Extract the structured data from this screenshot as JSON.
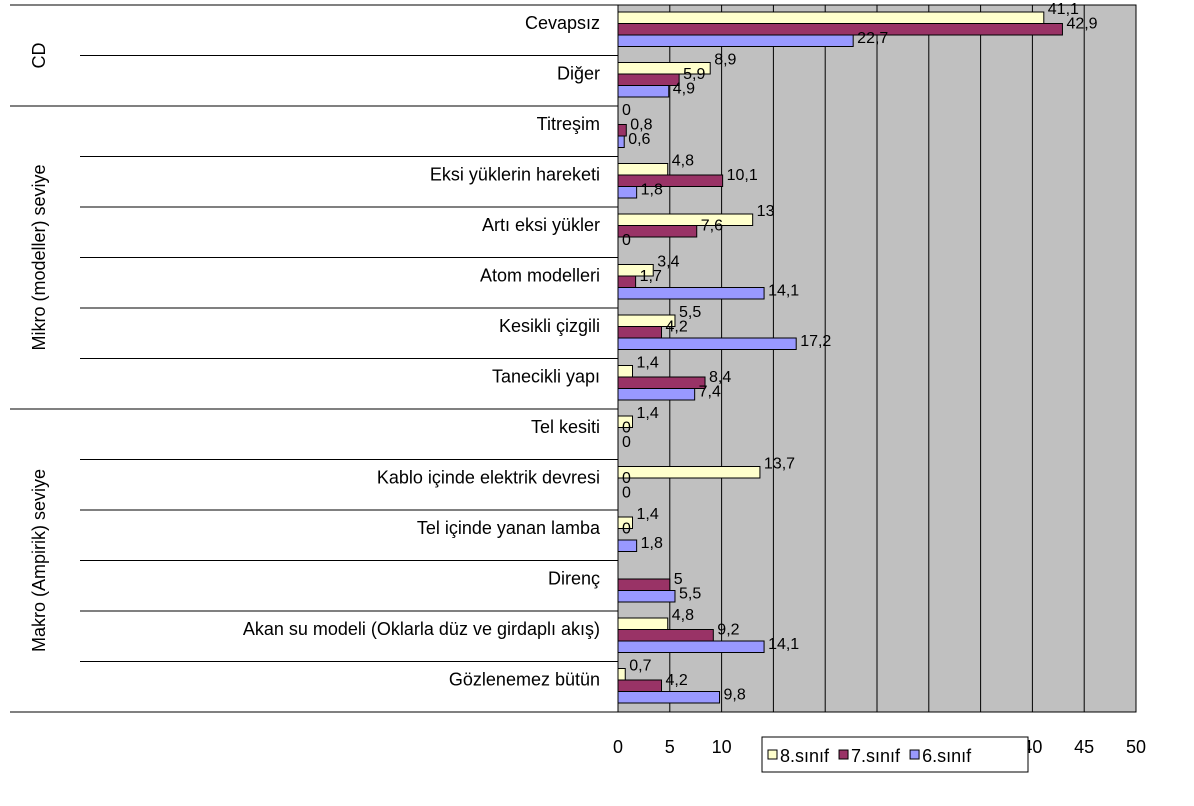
{
  "chart_data": {
    "type": "bar",
    "orientation": "horizontal",
    "xlabel": "%",
    "categories": [
      "Cevapsız",
      "Diğer",
      "Titreşim",
      "Eksi yüklerin hareketi",
      "Artı eksi yükler",
      "Atom modelleri",
      "Kesikli çizgili",
      "Tanecikli yapı",
      "Tel kesiti",
      "Kablo içinde elektrik devresi",
      "Tel içinde yanan lamba",
      "Direnç",
      "Akan su modeli (Oklarla düz ve girdaplı akış)",
      "Gözlenemez bütün"
    ],
    "groups": [
      {
        "label": "CD",
        "count": 2
      },
      {
        "label": "Mikro (modeller) seviye",
        "count": 6
      },
      {
        "label": "Makro (Ampirik) seviye",
        "count": 6
      }
    ],
    "series": [
      {
        "name": "8.sınıf",
        "color": "#ffffcc",
        "values": [
          41.1,
          8.9,
          0,
          4.8,
          13,
          3.4,
          5.5,
          1.4,
          1.4,
          13.7,
          1.4,
          null,
          4.8,
          0.7
        ],
        "value_labels": [
          "41,1",
          "8,9",
          "0",
          "4,8",
          "13",
          "3,4",
          "5,5",
          "1,4",
          "1,4",
          "13,7",
          "1,4",
          null,
          "4,8",
          "0,7"
        ]
      },
      {
        "name": "7.sınıf",
        "color": "#993366",
        "values": [
          42.9,
          5.9,
          0.8,
          10.1,
          7.6,
          1.7,
          4.2,
          8.4,
          0,
          0,
          0,
          5,
          9.2,
          4.2
        ],
        "value_labels": [
          "42,9",
          "5,9",
          "0,8",
          "10,1",
          "7,6",
          "1,7",
          "4,2",
          "8,4",
          "0",
          "0",
          "0",
          "5",
          "9,2",
          "4,2"
        ]
      },
      {
        "name": "6.sınıf",
        "color": "#9999ff",
        "values": [
          22.7,
          4.9,
          0.6,
          1.8,
          0,
          14.1,
          17.2,
          7.4,
          0,
          0,
          1.8,
          5.5,
          14.1,
          9.8
        ],
        "value_labels": [
          "22,7",
          "4,9",
          "0,6",
          "1,8",
          "0",
          "14,1",
          "17,2",
          "7,4",
          "0",
          "0",
          "1,8",
          "5,5",
          "14,1",
          "9,8"
        ]
      }
    ],
    "xlim": [
      0,
      50
    ],
    "xticks": [
      0,
      5,
      10,
      15,
      20,
      25,
      30,
      35,
      40,
      45,
      50
    ],
    "grid": true,
    "background": "#c0c0c0",
    "legend": "bottom"
  }
}
